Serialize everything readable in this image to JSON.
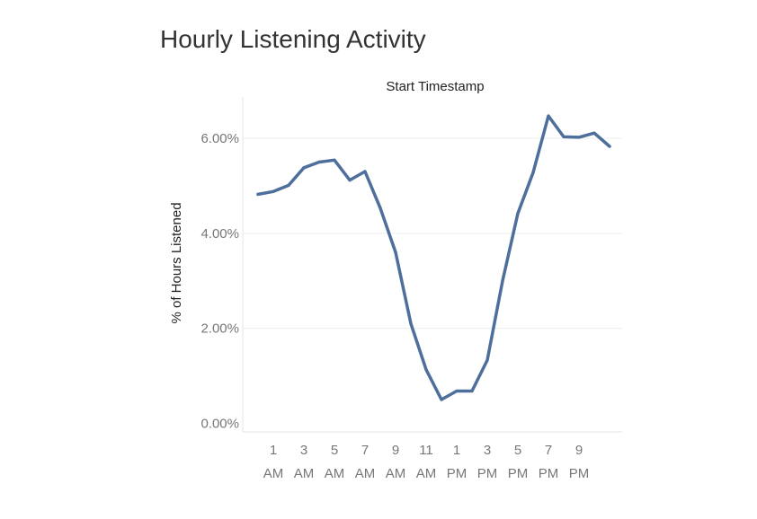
{
  "chart_data": {
    "type": "line",
    "title": "Hourly Listening Activity",
    "xlabel": "Start Timestamp",
    "ylabel": "% of Hours Listened",
    "ylim": [
      0,
      6.8
    ],
    "y_ticks": [
      0,
      2,
      4,
      6
    ],
    "y_tick_labels": [
      "0.00%",
      "2.00%",
      "4.00%",
      "6.00%"
    ],
    "x_tick_labels": [
      {
        "hour": 1,
        "line1": "1",
        "line2": "AM"
      },
      {
        "hour": 3,
        "line1": "3",
        "line2": "AM"
      },
      {
        "hour": 5,
        "line1": "5",
        "line2": "AM"
      },
      {
        "hour": 7,
        "line1": "7",
        "line2": "AM"
      },
      {
        "hour": 9,
        "line1": "9",
        "line2": "AM"
      },
      {
        "hour": 11,
        "line1": "11",
        "line2": "AM"
      },
      {
        "hour": 13,
        "line1": "1",
        "line2": "PM"
      },
      {
        "hour": 15,
        "line1": "3",
        "line2": "PM"
      },
      {
        "hour": 17,
        "line1": "5",
        "line2": "PM"
      },
      {
        "hour": 19,
        "line1": "7",
        "line2": "PM"
      },
      {
        "hour": 21,
        "line1": "9",
        "line2": "PM"
      }
    ],
    "series": [
      {
        "name": "% of Hours Listened",
        "color": "#4e6f9b",
        "x": [
          0,
          1,
          2,
          3,
          4,
          5,
          6,
          7,
          8,
          9,
          10,
          11,
          12,
          13,
          14,
          15,
          16,
          17,
          18,
          19,
          20,
          21,
          22,
          23
        ],
        "values": [
          4.82,
          4.88,
          5.01,
          5.38,
          5.5,
          5.54,
          5.12,
          5.3,
          4.53,
          3.6,
          2.1,
          1.13,
          0.5,
          0.68,
          0.68,
          1.33,
          3.0,
          4.42,
          5.28,
          6.47,
          6.03,
          6.02,
          6.11,
          5.83
        ]
      }
    ]
  }
}
